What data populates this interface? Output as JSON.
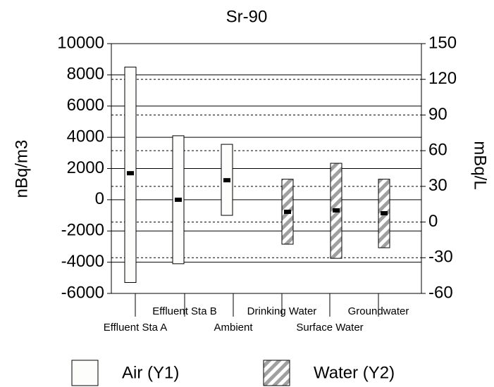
{
  "chart_data": {
    "type": "range_bar",
    "title": "Sr-90",
    "ylabel": "nBq/m3",
    "y2label": "mBq/L",
    "categories": [
      "Effluent Sta A",
      "Effluent Sta B",
      "Ambient",
      "Drinking Water",
      "Surface Water",
      "Groundwater"
    ],
    "series": [
      {
        "name": "Air (Y1)",
        "axis": "y",
        "color": "#fdfdfb",
        "pattern": "none",
        "low": [
          -5300,
          -4100,
          -1000,
          null,
          null,
          null
        ],
        "high": [
          8500,
          4100,
          3550,
          null,
          null,
          null
        ],
        "mean": [
          1700,
          0,
          1250,
          null,
          null,
          null
        ]
      },
      {
        "name": "Water (Y2)",
        "axis": "y2",
        "color": "#a0a0a0",
        "pattern": "hatch",
        "low": [
          null,
          null,
          null,
          -18.6,
          -30.5,
          -21.6
        ],
        "high": [
          null,
          null,
          null,
          36,
          49.4,
          36
        ],
        "mean": [
          null,
          null,
          null,
          8.6,
          9.8,
          7.4
        ]
      }
    ],
    "ylim": [
      -6000,
      10000
    ],
    "yticks": [
      -6000,
      -4000,
      -2000,
      0,
      2000,
      4000,
      6000,
      8000,
      10000
    ],
    "y2lim": [
      -60,
      150
    ],
    "y2ticks": [
      -60,
      -30,
      0,
      30,
      60,
      90,
      120,
      150
    ],
    "grid": true
  }
}
